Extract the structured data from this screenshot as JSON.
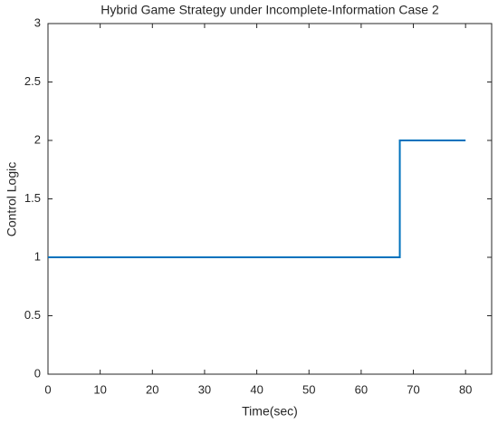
{
  "chart_data": {
    "type": "line",
    "title": "Hybrid Game Strategy under Incomplete-Information Case 2",
    "x_label": "Time(sec)",
    "y_label": "Control Logic",
    "x": [
      0,
      67.4,
      67.4,
      80
    ],
    "series": [
      {
        "name": "Control Logic",
        "color": "#0072bd",
        "values": [
          1,
          1,
          2,
          2
        ]
      }
    ],
    "xlim": [
      0,
      85
    ],
    "xticks": [
      0,
      10,
      20,
      30,
      40,
      50,
      60,
      70,
      80
    ],
    "ylim": [
      0,
      3
    ],
    "yticks": [
      0,
      0.5,
      1,
      1.5,
      2,
      2.5,
      3
    ],
    "grid": false
  }
}
